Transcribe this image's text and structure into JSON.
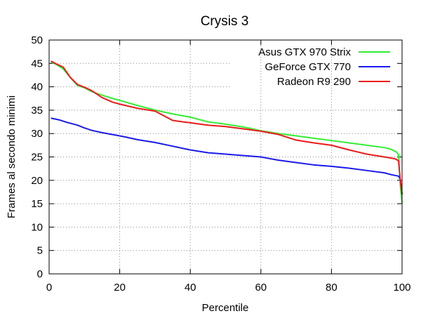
{
  "chart_data": {
    "type": "line",
    "title": "Crysis 3",
    "xlabel": "Percentile",
    "ylabel": "Frames al secondo minimi",
    "xlim": [
      0,
      100
    ],
    "ylim": [
      0,
      50
    ],
    "x_ticks": [
      0,
      20,
      40,
      60,
      80,
      100
    ],
    "y_ticks": [
      0,
      5,
      10,
      15,
      20,
      25,
      30,
      35,
      40,
      45,
      50
    ],
    "grid": true,
    "legend_position": "top-right",
    "series": [
      {
        "name": "Asus GTX 970 Strix",
        "color": "#33ee33",
        "x": [
          0.5,
          2,
          4,
          6,
          8,
          10,
          12,
          15,
          18,
          20,
          25,
          30,
          35,
          40,
          45,
          50,
          55,
          60,
          65,
          70,
          75,
          80,
          85,
          90,
          95,
          97,
          98.5,
          99,
          99.5,
          100
        ],
        "y": [
          45.3,
          44.8,
          43.8,
          42.0,
          40.3,
          39.8,
          39.0,
          38.2,
          37.5,
          37.1,
          36.0,
          35.0,
          34.2,
          33.5,
          32.5,
          32.0,
          31.4,
          30.6,
          30.0,
          29.5,
          29.0,
          28.5,
          28.0,
          27.5,
          27.0,
          26.6,
          26.0,
          25.5,
          19.0,
          15.0
        ]
      },
      {
        "name": "GeForce GTX 770",
        "color": "#1a1aee",
        "x": [
          0.5,
          3,
          5,
          8,
          10,
          12,
          15,
          20,
          22,
          25,
          30,
          35,
          40,
          45,
          50,
          55,
          60,
          65,
          70,
          75,
          80,
          85,
          90,
          95,
          97,
          99,
          99.5,
          100
        ],
        "y": [
          33.3,
          32.9,
          32.4,
          31.8,
          31.2,
          30.7,
          30.2,
          29.5,
          29.2,
          28.7,
          28.1,
          27.3,
          26.5,
          25.9,
          25.6,
          25.3,
          25.0,
          24.3,
          23.8,
          23.3,
          23.0,
          22.6,
          22.1,
          21.6,
          21.2,
          20.9,
          20.2,
          17.0
        ]
      },
      {
        "name": "Radeon R9 290",
        "color": "#ee1a1a",
        "x": [
          0.5,
          2,
          4,
          6,
          8,
          10,
          12,
          15,
          18,
          20,
          25,
          30,
          35,
          40,
          45,
          50,
          55,
          60,
          65,
          70,
          75,
          80,
          85,
          90,
          95,
          98,
          99,
          99.5,
          100
        ],
        "y": [
          45.5,
          44.9,
          44.2,
          42.0,
          40.5,
          39.9,
          39.2,
          37.7,
          36.7,
          36.3,
          35.4,
          34.8,
          32.8,
          32.3,
          31.8,
          31.5,
          31.0,
          30.5,
          29.8,
          28.6,
          28.0,
          27.5,
          26.5,
          25.6,
          25.0,
          24.6,
          24.2,
          20.0,
          17.0
        ]
      }
    ]
  }
}
